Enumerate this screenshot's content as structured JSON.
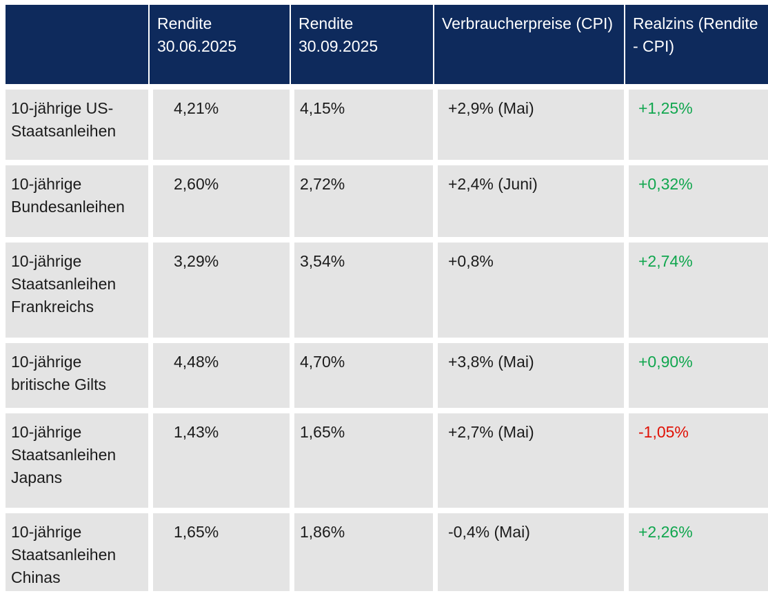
{
  "chart_data": {
    "type": "table",
    "columns": [
      "",
      "Rendite 30.06.2025",
      "Rendite 30.09.2025",
      "Verbraucherpreise (CPI)",
      "Realzins (Rendite - CPI)"
    ],
    "rows": [
      [
        "10-jährige US-Staatsanleihen",
        "4,21%",
        "4,15%",
        "+2,9% (Mai)",
        "+1,25%"
      ],
      [
        "10-jährige Bundesanleihen",
        "2,60%",
        "2,72%",
        "+2,4% (Juni)",
        "+0,32%"
      ],
      [
        "10-jährige Staatsanleihen Frankreichs",
        "3,29%",
        "3,54%",
        "+0,8%",
        "+2,74%"
      ],
      [
        "10-jährige britische Gilts",
        "4,48%",
        "4,70%",
        "+3,8% (Mai)",
        "+0,90%"
      ],
      [
        "10-jährige Staatsanleihen Japans",
        "1,43%",
        "1,65%",
        "+2,7% (Mai)",
        "-1,05%"
      ],
      [
        "10-jährige Staatsanleihen Chinas",
        "1,65%",
        "1,86%",
        "-0,4% (Mai)",
        "+2,26%"
      ]
    ]
  },
  "table": {
    "header": {
      "c0": "",
      "c1": "Rendite 30.06.2025",
      "c2": "Rendite 30.09.2025",
      "c3": "Verbraucherpreise (CPI)",
      "c4": "Realzins (Rendite - CPI)"
    },
    "rows": [
      {
        "label": "10-jährige US-Staatsanleihen",
        "rendite_30_06": "4,21%",
        "rendite_30_09": "4,15%",
        "cpi": "+2,9% (Mai)",
        "realzins": "+1,25%",
        "realzins_trend": "positive"
      },
      {
        "label": "10-jährige Bundesanleihen",
        "rendite_30_06": "2,60%",
        "rendite_30_09": "2,72%",
        "cpi": "+2,4% (Juni)",
        "realzins": "+0,32%",
        "realzins_trend": "positive"
      },
      {
        "label": "10-jährige Staatsanleihen Frankreichs",
        "rendite_30_06": "3,29%",
        "rendite_30_09": "3,54%",
        "cpi": "+0,8%",
        "realzins": "+2,74%",
        "realzins_trend": "positive"
      },
      {
        "label": "10-jährige britische Gilts",
        "rendite_30_06": "4,48%",
        "rendite_30_09": "4,70%",
        "cpi": "+3,8% (Mai)",
        "realzins": "+0,90%",
        "realzins_trend": "positive"
      },
      {
        "label": "10-jährige Staatsanleihen Japans",
        "rendite_30_06": "1,43%",
        "rendite_30_09": "1,65%",
        "cpi": "+2,7% (Mai)",
        "realzins": "-1,05%",
        "realzins_trend": "negative"
      },
      {
        "label": "10-jährige Staatsanleihen Chinas",
        "rendite_30_06": "1,65%",
        "rendite_30_09": "1,86%",
        "cpi": "-0,4% (Mai)",
        "realzins": "+2,26%",
        "realzins_trend": "positive"
      }
    ]
  },
  "colors": {
    "header_bg": "#0e2a5c",
    "header_text": "#ffffff",
    "cell_bg": "#e4e4e4",
    "body_text": "#1b1b1b",
    "positive": "#10a64e",
    "negative": "#e01005"
  }
}
